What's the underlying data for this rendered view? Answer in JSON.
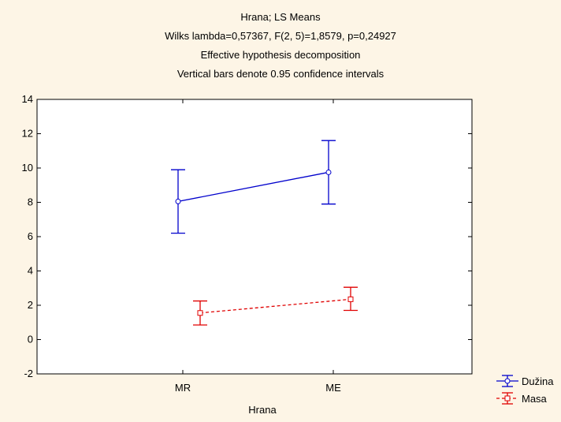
{
  "chart_data": {
    "type": "line",
    "title_lines": [
      "Hrana; LS Means",
      "Wilks lambda=0,57367, F(2, 5)=1,8579, p=0,24927",
      "Effective hypothesis decomposition",
      "Vertical bars denote 0.95 confidence intervals"
    ],
    "xlabel": "Hrana",
    "ylabel": "",
    "categories": [
      "MR",
      "ME"
    ],
    "ylim": [
      -2,
      14
    ],
    "yticks": [
      -2,
      0,
      2,
      4,
      6,
      8,
      10,
      12,
      14
    ],
    "grid": false,
    "legend_position": "bottom-right-outside",
    "series": [
      {
        "name": "Dužina",
        "values": [
          8.05,
          9.75
        ],
        "lower": [
          6.2,
          7.9
        ],
        "upper": [
          9.9,
          11.6
        ],
        "color": "#0000cc",
        "line_style": "solid",
        "marker": "circle"
      },
      {
        "name": "Masa",
        "values": [
          1.55,
          2.35
        ],
        "lower": [
          0.85,
          1.7
        ],
        "upper": [
          2.25,
          3.05
        ],
        "color": "#e00000",
        "line_style": "dashed",
        "marker": "square"
      }
    ]
  }
}
